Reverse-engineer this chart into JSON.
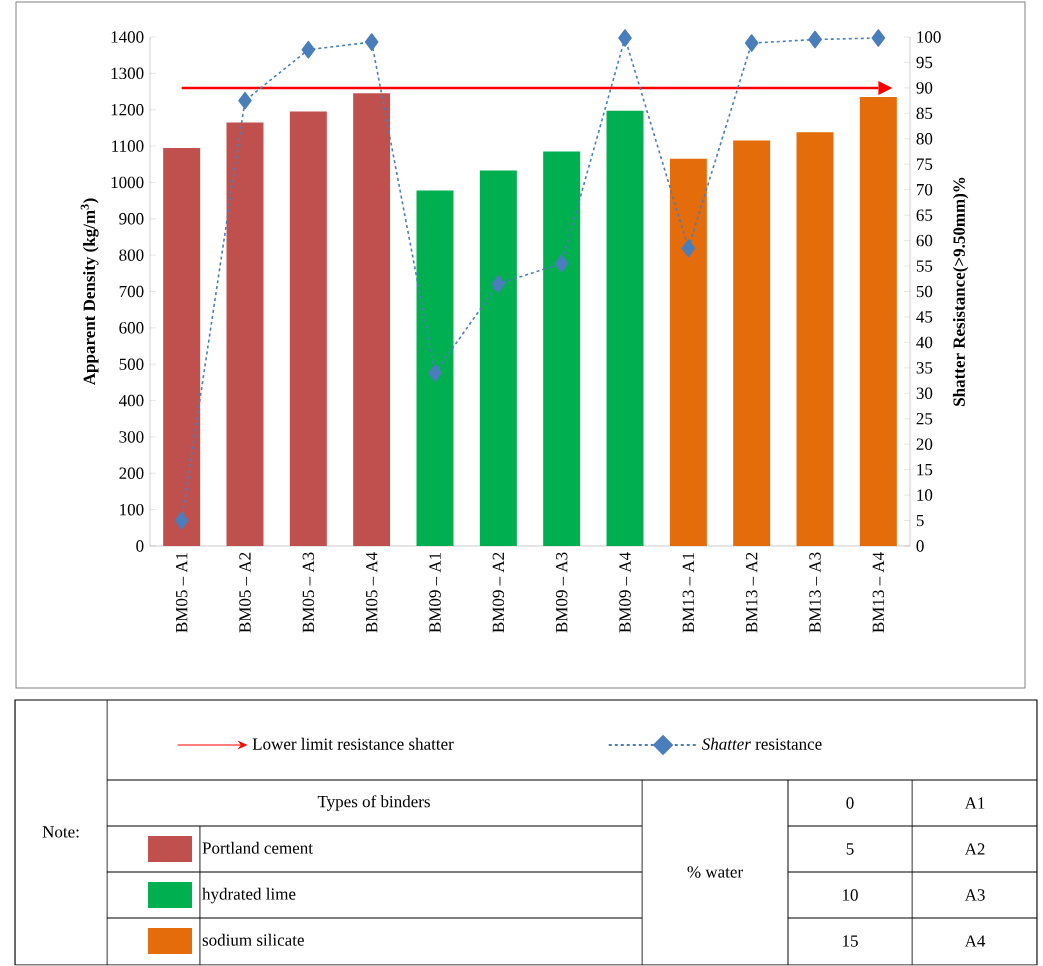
{
  "chart_data": {
    "type": "bar",
    "categories": [
      "BM05 – A1",
      "BM05 – A2",
      "BM05 – A3",
      "BM05 – A4",
      "BM09 – A1",
      "BM09 – A2",
      "BM09 – A3",
      "BM09 – A4",
      "BM13 – A1",
      "BM13 – A2",
      "BM13 – A3",
      "BM13 – A4"
    ],
    "ylabel": "Apparent Density (kg/m$^{3}$)",
    "y2label": "Shatter Resistance(>9.50mm)%",
    "ylim": [
      0,
      1400
    ],
    "yticks": [
      0,
      100,
      200,
      300,
      400,
      500,
      600,
      700,
      800,
      900,
      1000,
      1100,
      1200,
      1300,
      1400
    ],
    "y2lim": [
      0,
      100
    ],
    "y2ticks": [
      0,
      5,
      10,
      15,
      20,
      25,
      30,
      35,
      40,
      45,
      50,
      55,
      60,
      65,
      70,
      75,
      80,
      85,
      90,
      95,
      100
    ],
    "legend": "bottom",
    "legend_title": "Types of binders",
    "series": [
      {
        "name": "Portland cement",
        "color": "#c0504d",
        "values": [
          1095,
          1165,
          1195,
          1245,
          null,
          null,
          null,
          null,
          null,
          null,
          null,
          null
        ]
      },
      {
        "name": "hydrated lime",
        "color": "#00b050",
        "values": [
          null,
          null,
          null,
          null,
          978,
          1033,
          1085,
          1198,
          null,
          null,
          null,
          null
        ]
      },
      {
        "name": "sodium silicate",
        "color": "#e46c0a",
        "values": [
          null,
          null,
          null,
          null,
          null,
          null,
          null,
          null,
          1065,
          1115,
          1138,
          1235
        ]
      },
      {
        "name": "*Shatter* resistance",
        "type": "line",
        "axis": "y2",
        "color": "#4a7ebb",
        "marker": "diamond",
        "line_style": "dashed",
        "values": [
          5,
          87.5,
          97.5,
          99,
          34,
          51.5,
          55.5,
          99.8,
          58.5,
          98.8,
          99.5,
          99.8
        ]
      }
    ],
    "ref_lines": [
      {
        "axis": "y2",
        "value": 90,
        "label": "Lower limit resistance shatter",
        "color": "#ff0000"
      }
    ],
    "annotations": [
      "Note:",
      "% water",
      "0",
      "A1",
      "5",
      "A2",
      "10",
      "A3",
      "15",
      "A4"
    ]
  }
}
